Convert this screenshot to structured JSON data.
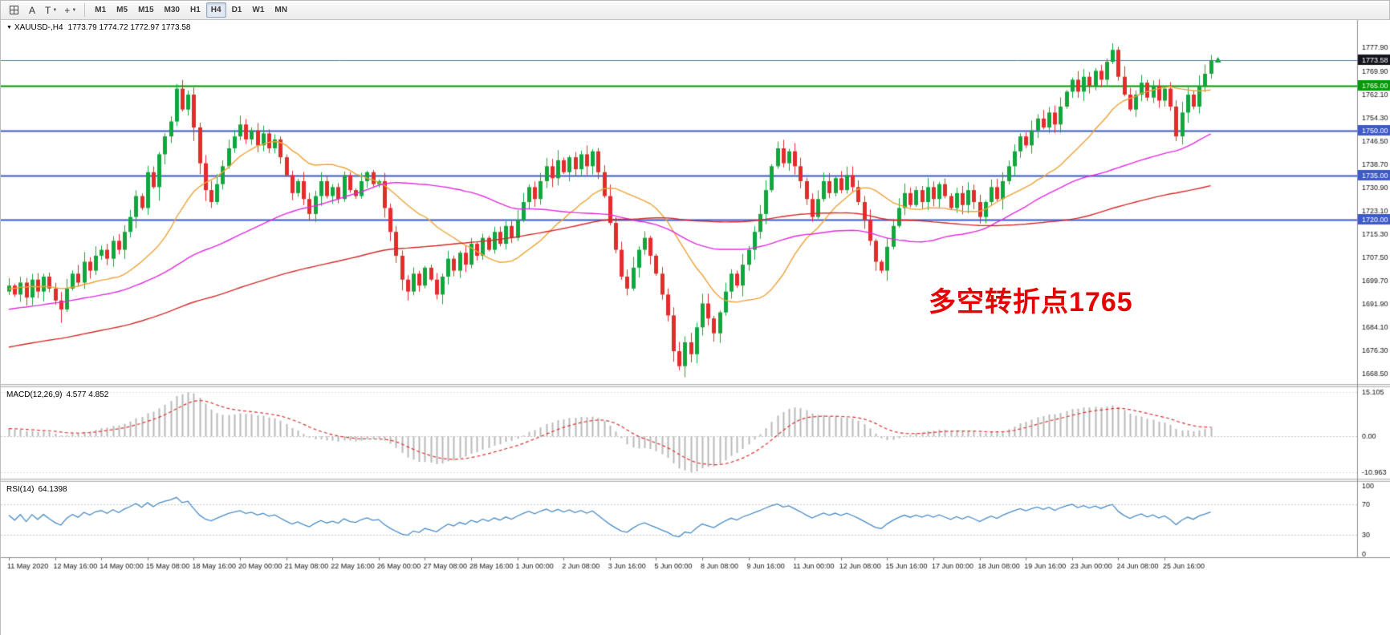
{
  "toolbar": {
    "text_tool_label": "A",
    "shapes_tool_label": "T",
    "crosshair_glyph": "+",
    "dropdown_glyph": "▼",
    "timeframes": [
      {
        "label": "M1",
        "active": false
      },
      {
        "label": "M5",
        "active": false
      },
      {
        "label": "M15",
        "active": false
      },
      {
        "label": "M30",
        "active": false
      },
      {
        "label": "H1",
        "active": false
      },
      {
        "label": "H4",
        "active": true
      },
      {
        "label": "D1",
        "active": false
      },
      {
        "label": "W1",
        "active": false
      },
      {
        "label": "MN",
        "active": false
      }
    ]
  },
  "chart": {
    "collapse_icon": "▼",
    "symbol_title": "XAUUSD-,H4",
    "ohlc_values": "1773.79 1774.72 1772.97 1773.58",
    "annotation": "多空转折点1765",
    "annotation_color": "#e60000"
  },
  "macd_panel": {
    "label": "MACD(12,26,9)",
    "values": "4.577 4.852",
    "ticks": [
      "15.105",
      "0.00",
      "-10.963"
    ]
  },
  "rsi_panel": {
    "label": "RSI(14)",
    "value": "64.1398",
    "ticks": [
      "100",
      "70",
      "30",
      "0"
    ]
  },
  "chart_data": {
    "type": "candlestick",
    "symbol": "XAUUSD-",
    "timeframe": "H4",
    "current_close": 1773.58,
    "x_labels": [
      "11 May 2020",
      "12 May 16:00",
      "14 May 00:00",
      "15 May 08:00",
      "18 May 16:00",
      "20 May 00:00",
      "21 May 08:00",
      "22 May 16:00",
      "26 May 00:00",
      "27 May 08:00",
      "28 May 16:00",
      "1 Jun 00:00",
      "2 Jun 08:00",
      "3 Jun 16:00",
      "5 Jun 00:00",
      "8 Jun 08:00",
      "9 Jun 16:00",
      "11 Jun 00:00",
      "12 Jun 08:00",
      "15 Jun 16:00",
      "17 Jun 00:00",
      "18 Jun 08:00",
      "19 Jun 16:00",
      "23 Jun 00:00",
      "24 Jun 08:00",
      "25 Jun 16:00"
    ],
    "candles_per_label": 8,
    "closes": [
      1698,
      1695,
      1699,
      1694,
      1700,
      1696,
      1701,
      1697,
      1693,
      1690,
      1697,
      1702,
      1699,
      1706,
      1703,
      1708,
      1710,
      1707,
      1713,
      1710,
      1716,
      1721,
      1728,
      1724,
      1736,
      1731,
      1742,
      1748,
      1753,
      1764,
      1757,
      1762,
      1751,
      1739,
      1730,
      1726,
      1732,
      1738,
      1744,
      1748,
      1752,
      1747,
      1750,
      1745,
      1749,
      1744,
      1747,
      1741,
      1735,
      1729,
      1733,
      1727,
      1722,
      1728,
      1733,
      1728,
      1731,
      1727,
      1735,
      1730,
      1728,
      1733,
      1736,
      1732,
      1733,
      1724,
      1716,
      1708,
      1700,
      1696,
      1702,
      1698,
      1704,
      1700,
      1695,
      1701,
      1707,
      1703,
      1709,
      1705,
      1712,
      1708,
      1714,
      1710,
      1716,
      1712,
      1718,
      1714,
      1720,
      1726,
      1731,
      1727,
      1733,
      1738,
      1734,
      1740,
      1736,
      1741,
      1737,
      1742,
      1738,
      1743,
      1736,
      1728,
      1719,
      1710,
      1701,
      1697,
      1704,
      1710,
      1714,
      1708,
      1702,
      1695,
      1688,
      1676,
      1671,
      1679,
      1675,
      1684,
      1692,
      1687,
      1682,
      1689,
      1696,
      1702,
      1698,
      1705,
      1710,
      1716,
      1722,
      1730,
      1738,
      1744,
      1739,
      1743,
      1738,
      1733,
      1727,
      1721,
      1727,
      1733,
      1729,
      1734,
      1730,
      1735,
      1731,
      1726,
      1720,
      1713,
      1706,
      1703,
      1711,
      1718,
      1724,
      1729,
      1725,
      1730,
      1726,
      1731,
      1727,
      1732,
      1728,
      1724,
      1729,
      1725,
      1730,
      1726,
      1721,
      1726,
      1731,
      1727,
      1733,
      1738,
      1743,
      1748,
      1745,
      1750,
      1754,
      1751,
      1756,
      1752,
      1758,
      1763,
      1767,
      1763,
      1768,
      1765,
      1770,
      1767,
      1773,
      1777,
      1768,
      1762,
      1757,
      1762,
      1766,
      1761,
      1765,
      1760,
      1764,
      1758,
      1748,
      1756,
      1762,
      1758,
      1765,
      1769,
      1773.58
    ],
    "wick_overrides": {
      "9": {
        "low": 1685.5
      },
      "29": {
        "high": 1765.6
      },
      "116": {
        "low": 1669.6
      },
      "191": {
        "high": 1779.2
      },
      "202": {
        "low": 1746.4
      }
    },
    "y_axis": {
      "min": 1665.0,
      "max": 1787.0,
      "ticks": [
        "1777.90",
        "1769.90",
        "1762.10",
        "1754.30",
        "1746.50",
        "1738.70",
        "1730.90",
        "1723.10",
        "1715.30",
        "1707.50",
        "1699.70",
        "1691.90",
        "1684.10",
        "1676.30",
        "1668.50"
      ]
    },
    "hlines": [
      {
        "price": 1765.0,
        "label": "1765.00",
        "color": "#009c00"
      },
      {
        "price": 1750.0,
        "label": "1750.00",
        "color": "#3c5ac8"
      },
      {
        "price": 1735.0,
        "label": "1735.00",
        "color": "#3c5ac8"
      },
      {
        "price": 1720.0,
        "label": "1720.00",
        "color": "#3c5ac8"
      }
    ],
    "bid_line": {
      "price": 1773.58,
      "label": "1773.58",
      "line_color": "#4a72d8",
      "label_bg": "#14141c"
    },
    "moving_averages": [
      {
        "period": 20,
        "color": "#eda339"
      },
      {
        "period": 55,
        "color": "#e02ce0"
      },
      {
        "period": 120,
        "color": "#d42b2b"
      }
    ],
    "indicators": [
      {
        "type": "MACD",
        "params": [
          12,
          26,
          9
        ],
        "current": [
          4.577,
          4.852
        ],
        "scale_ticks": [
          "15.105",
          "0.00",
          "-10.963"
        ],
        "hist_color": "#b9b9b9",
        "signal_color": "#dd3333"
      },
      {
        "type": "RSI",
        "params": [
          14
        ],
        "current": 64.1398,
        "levels": [
          70,
          30
        ],
        "line_color": "#4a8cc8",
        "scale_ticks": [
          "100",
          "70",
          "30",
          "0"
        ]
      }
    ],
    "candle_up_color": "#12a63e",
    "candle_down_color": "#e32c2c"
  }
}
